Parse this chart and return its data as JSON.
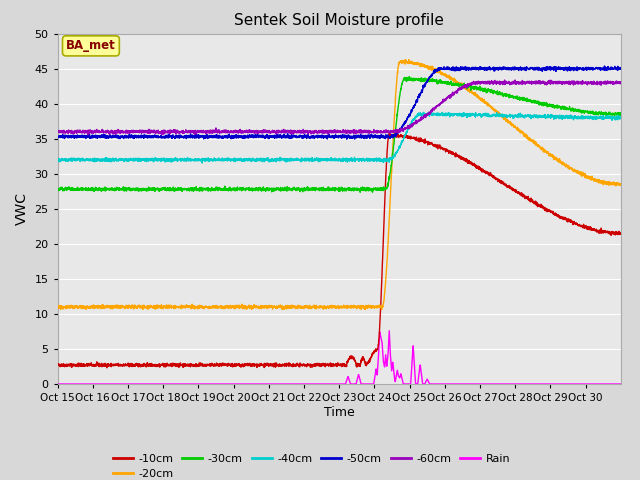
{
  "title": "Sentek Soil Moisture profile",
  "xlabel": "Time",
  "ylabel": "VWC",
  "annotation": "BA_met",
  "ylim": [
    0,
    50
  ],
  "yticks": [
    0,
    5,
    10,
    15,
    20,
    25,
    30,
    35,
    40,
    45,
    50
  ],
  "xtick_labels": [
    "Oct 15",
    "Oct 16",
    "Oct 17",
    "Oct 18",
    "Oct 19",
    "Oct 20",
    "Oct 21",
    "Oct 22",
    "Oct 23",
    "Oct 24",
    "Oct 25",
    "Oct 26",
    "Oct 27",
    "Oct 28",
    "Oct 29",
    "Oct 30"
  ],
  "fig_bg_color": "#d8d8d8",
  "plot_bg_color": "#e8e8e8",
  "grid_color": "#ffffff",
  "colors": {
    "10cm": "#cc0000",
    "20cm": "#ffa500",
    "30cm": "#00cc00",
    "40cm": "#00cccc",
    "50cm": "#0000cc",
    "60cm": "#9900bb",
    "rain": "#ff00ff"
  },
  "anno_facecolor": "#ffff99",
  "anno_edgecolor": "#aaaa00",
  "anno_textcolor": "#880000",
  "legend_ncol_row1": 6,
  "noise": 0.12
}
